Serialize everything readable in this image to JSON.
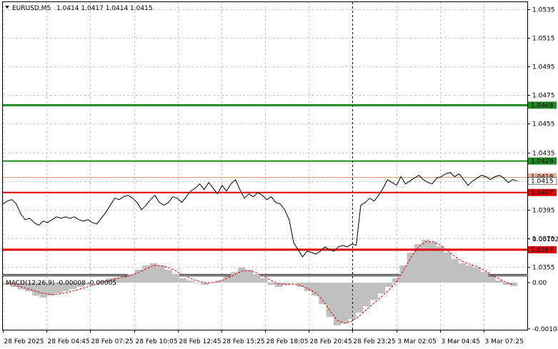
{
  "header": {
    "menu_icon": "triangle-down-icon",
    "symbol": "EURUSD,M5",
    "ohlc": "1.0414 1.0417 1.0414 1.0415",
    "macd_label": "MACD(12,26,9) -0.00008 -0.00005"
  },
  "colors": {
    "green_level": "#1f8a1f",
    "red_level": "#e00000",
    "ask_line": "#d2a070",
    "grid": "#c8c8c8",
    "price_line": "#000000",
    "macd_hist": "#c0c0c0",
    "macd_signal": "#e00000"
  },
  "chart_data": {
    "type": "line",
    "symbol": "EURUSD",
    "timeframe": "M5",
    "price_axis": {
      "min": 1.035,
      "max": 1.054,
      "ticks": [
        "1.0535",
        "1.0515",
        "1.0495",
        "1.0475",
        "1.0455",
        "1.0435",
        "1.0415",
        "1.0395",
        "1.0375",
        "1.0355"
      ]
    },
    "levels": [
      {
        "value": 1.0468,
        "label": "1.0468",
        "color": "green"
      },
      {
        "value": 1.0429,
        "label": "1.0429",
        "color": "green"
      },
      {
        "value": 1.0407,
        "label": "1.0407",
        "color": "red"
      },
      {
        "value": 1.0367,
        "label": "1.0367",
        "color": "red"
      }
    ],
    "ask_level": {
      "value": 1.0418,
      "label": "1.0418"
    },
    "bid_level": {
      "value": 1.0415,
      "label": "1.0415"
    },
    "time_labels": [
      "28 Feb 2025",
      "28 Feb 04:45",
      "28 Feb 07:25",
      "28 Feb 10:05",
      "28 Feb 12:45",
      "28 Feb 15:25",
      "28 Feb 18:05",
      "28 Feb 20:45",
      "28 Feb 23:25",
      "3 Mar 02:05",
      "3 Mar 04:45",
      "3 Mar 07:25"
    ],
    "session_separator_after": "28 Feb 23:25",
    "price_series": [
      1.0399,
      1.0401,
      1.0402,
      1.0399,
      1.0392,
      1.0388,
      1.0389,
      1.0386,
      1.0384,
      1.0387,
      1.0386,
      1.0388,
      1.039,
      1.0389,
      1.039,
      1.0389,
      1.039,
      1.0388,
      1.0387,
      1.0388,
      1.0386,
      1.0385,
      1.0389,
      1.0393,
      1.0398,
      1.0403,
      1.0402,
      1.0404,
      1.0405,
      1.0403,
      1.04,
      1.0395,
      1.0398,
      1.0402,
      1.0405,
      1.04,
      1.0398,
      1.04,
      1.0404,
      1.0403,
      1.04,
      1.0404,
      1.0408,
      1.041,
      1.0413,
      1.0409,
      1.0414,
      1.041,
      1.0406,
      1.0412,
      1.0408,
      1.0413,
      1.0416,
      1.0409,
      1.0403,
      1.0406,
      1.0404,
      1.0407,
      1.0405,
      1.0402,
      1.0404,
      1.04,
      1.0399,
      1.0395,
      1.0388,
      1.0372,
      1.0367,
      1.0362,
      1.0366,
      1.0365,
      1.0364,
      1.0366,
      1.0369,
      1.0367,
      1.0366,
      1.0369,
      1.037,
      1.0369,
      1.0371,
      1.037,
      1.0398,
      1.04,
      1.0403,
      1.0401,
      1.0405,
      1.041,
      1.0416,
      1.0414,
      1.0412,
      1.0418,
      1.0413,
      1.0415,
      1.0417,
      1.0419,
      1.0416,
      1.0414,
      1.0413,
      1.0417,
      1.0418,
      1.042,
      1.0421,
      1.0418,
      1.042,
      1.0416,
      1.0412,
      1.0415,
      1.0417,
      1.0419,
      1.0418,
      1.0416,
      1.0418,
      1.0419,
      1.0417,
      1.0414,
      1.0416,
      1.0415
    ],
    "macd_axis": {
      "min": -0.0011,
      "max": 0.00015,
      "ticks": [
        "0.00102",
        "0.00",
        "-0.00108"
      ]
    },
    "macd_histogram": [
      -5e-05,
      -0.0001,
      -0.00015,
      -0.0002,
      -0.0003,
      -0.00035,
      -0.0003,
      -0.00025,
      -0.0002,
      -0.00015,
      -0.0001,
      -5e-05,
      0.0,
      5e-05,
      0.0001,
      0.00012,
      0.00015,
      0.0002,
      0.0003,
      0.0004,
      0.00045,
      0.0004,
      0.0003,
      0.0002,
      0.0001,
      5e-05,
      0.0,
      -5e-05,
      0.0,
      5e-05,
      0.00015,
      0.00025,
      0.00035,
      0.0003,
      0.0002,
      0.0001,
      -5e-05,
      -0.0001,
      -5e-05,
      0.0,
      -0.0001,
      -0.0002,
      -0.0003,
      -0.0005,
      -0.0008,
      -0.001,
      -0.00095,
      -0.00085,
      -0.0007,
      -0.00055,
      -0.0004,
      -0.00025,
      -0.0001,
      0.0001,
      0.0004,
      0.0007,
      0.0009,
      0.001,
      0.00095,
      0.00085,
      0.0007,
      0.00055,
      0.00045,
      0.0004,
      0.00035,
      0.00025,
      0.00015,
      5e-05,
      -5e-05,
      -8e-05
    ],
    "macd_signal": [
      -2e-05,
      -5e-05,
      -0.0001,
      -0.00015,
      -0.0002,
      -0.00025,
      -0.00028,
      -0.00027,
      -0.00024,
      -0.0002,
      -0.00015,
      -0.0001,
      -5e-05,
      0.0,
      5e-05,
      0.0001,
      0.00013,
      0.00017,
      0.00024,
      0.00032,
      0.0004,
      0.0004,
      0.00035,
      0.00028,
      0.00018,
      0.0001,
      4e-05,
      0.0,
      0.0,
      3e-05,
      0.0001,
      0.00018,
      0.00027,
      0.00028,
      0.00023,
      0.00015,
      5e-05,
      -3e-05,
      -5e-05,
      -3e-05,
      -6e-05,
      -0.00014,
      -0.00023,
      -0.0004,
      -0.00065,
      -0.00088,
      -0.00095,
      -0.0009,
      -0.00078,
      -0.00063,
      -0.00048,
      -0.00033,
      -0.00018,
      0.0,
      0.00028,
      0.00058,
      0.00082,
      0.00095,
      0.00096,
      0.00088,
      0.00075,
      0.00061,
      0.0005,
      0.00043,
      0.00038,
      0.00029,
      0.00019,
      9e-05,
      0.0,
      -5e-05
    ]
  }
}
